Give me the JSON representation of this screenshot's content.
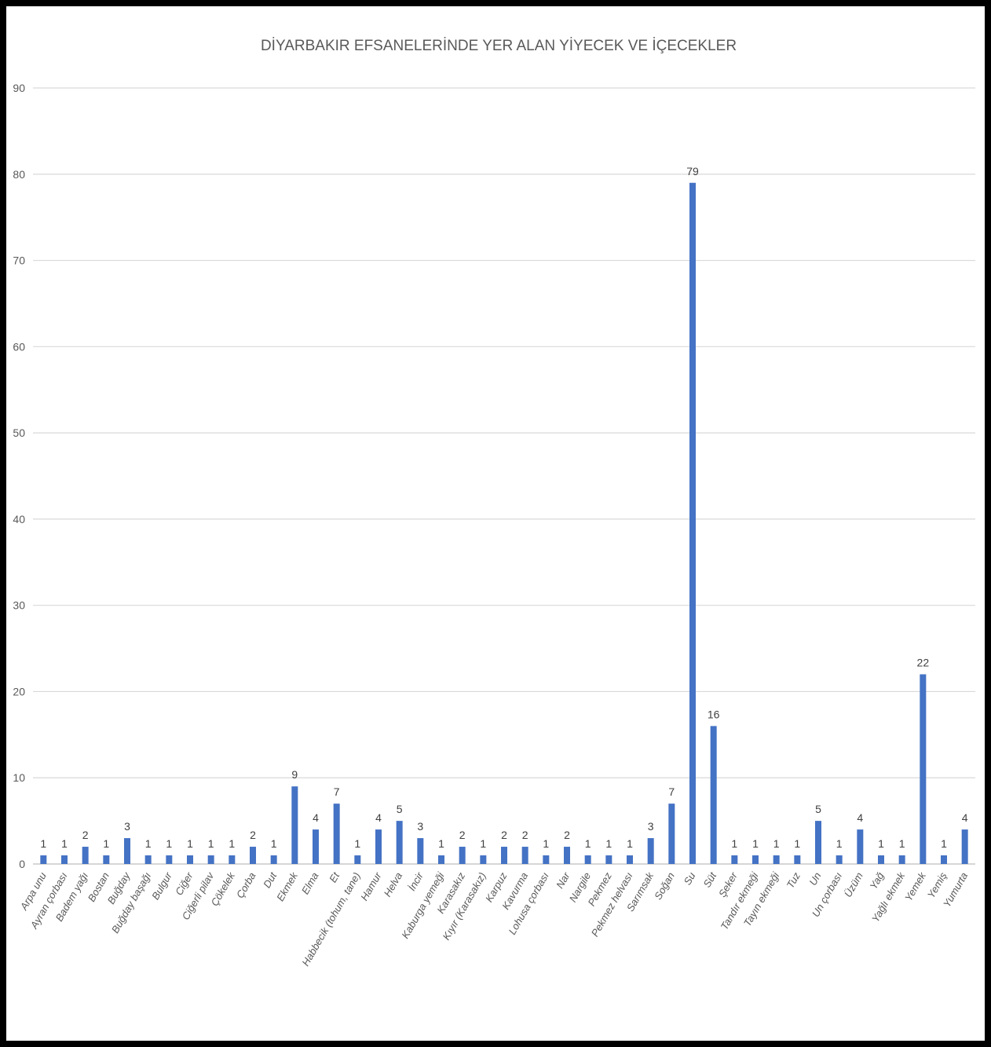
{
  "chart_data": {
    "type": "bar",
    "title": "DİYARBAKIR EFSANELERİNDE YER ALAN YİYECEK VE İÇECEKLER",
    "xlabel": "",
    "ylabel": "",
    "ylim": [
      0,
      90
    ],
    "yticks": [
      0,
      10,
      20,
      30,
      40,
      50,
      60,
      70,
      80,
      90
    ],
    "grid": true,
    "data_labels": true,
    "colors": {
      "bar": "#4472c4"
    },
    "categories": [
      "Arpa unu",
      "Ayran çorbası",
      "Badem yağı",
      "Bostan",
      "Buğday",
      "Buğday başağı",
      "Bulgur",
      "Ciğer",
      "Ciğerli pilav",
      "Çökelek",
      "Çorba",
      "Dut",
      "Ekmek",
      "Elma",
      "Et",
      "Habbecik (tohum, tane)",
      "Hamur",
      "Helva",
      "İncir",
      "Kaburga yemeği",
      "Karasakız",
      "Kıyır (Karasakız)",
      "Karpuz",
      "Kavurma",
      "Lohusa çorbası",
      "Nar",
      "Nargile",
      "Pekmez",
      "Pekmez helvası",
      "Sarımsak",
      "Soğan",
      "Su",
      "Süt",
      "Şeker",
      "Tandır ekmeği",
      "Tayın ekmeği",
      "Tuz",
      "Un",
      "Un çorbası",
      "Üzüm",
      "Yağ",
      "Yağlı ekmek",
      "Yemek",
      "Yemiş",
      "Yumurta"
    ],
    "values": [
      1,
      1,
      2,
      1,
      3,
      1,
      1,
      1,
      1,
      1,
      2,
      1,
      9,
      4,
      7,
      1,
      4,
      5,
      3,
      1,
      2,
      1,
      2,
      2,
      1,
      2,
      1,
      1,
      1,
      3,
      7,
      79,
      16,
      1,
      1,
      1,
      1,
      5,
      1,
      4,
      1,
      1,
      22,
      1,
      4
    ]
  }
}
